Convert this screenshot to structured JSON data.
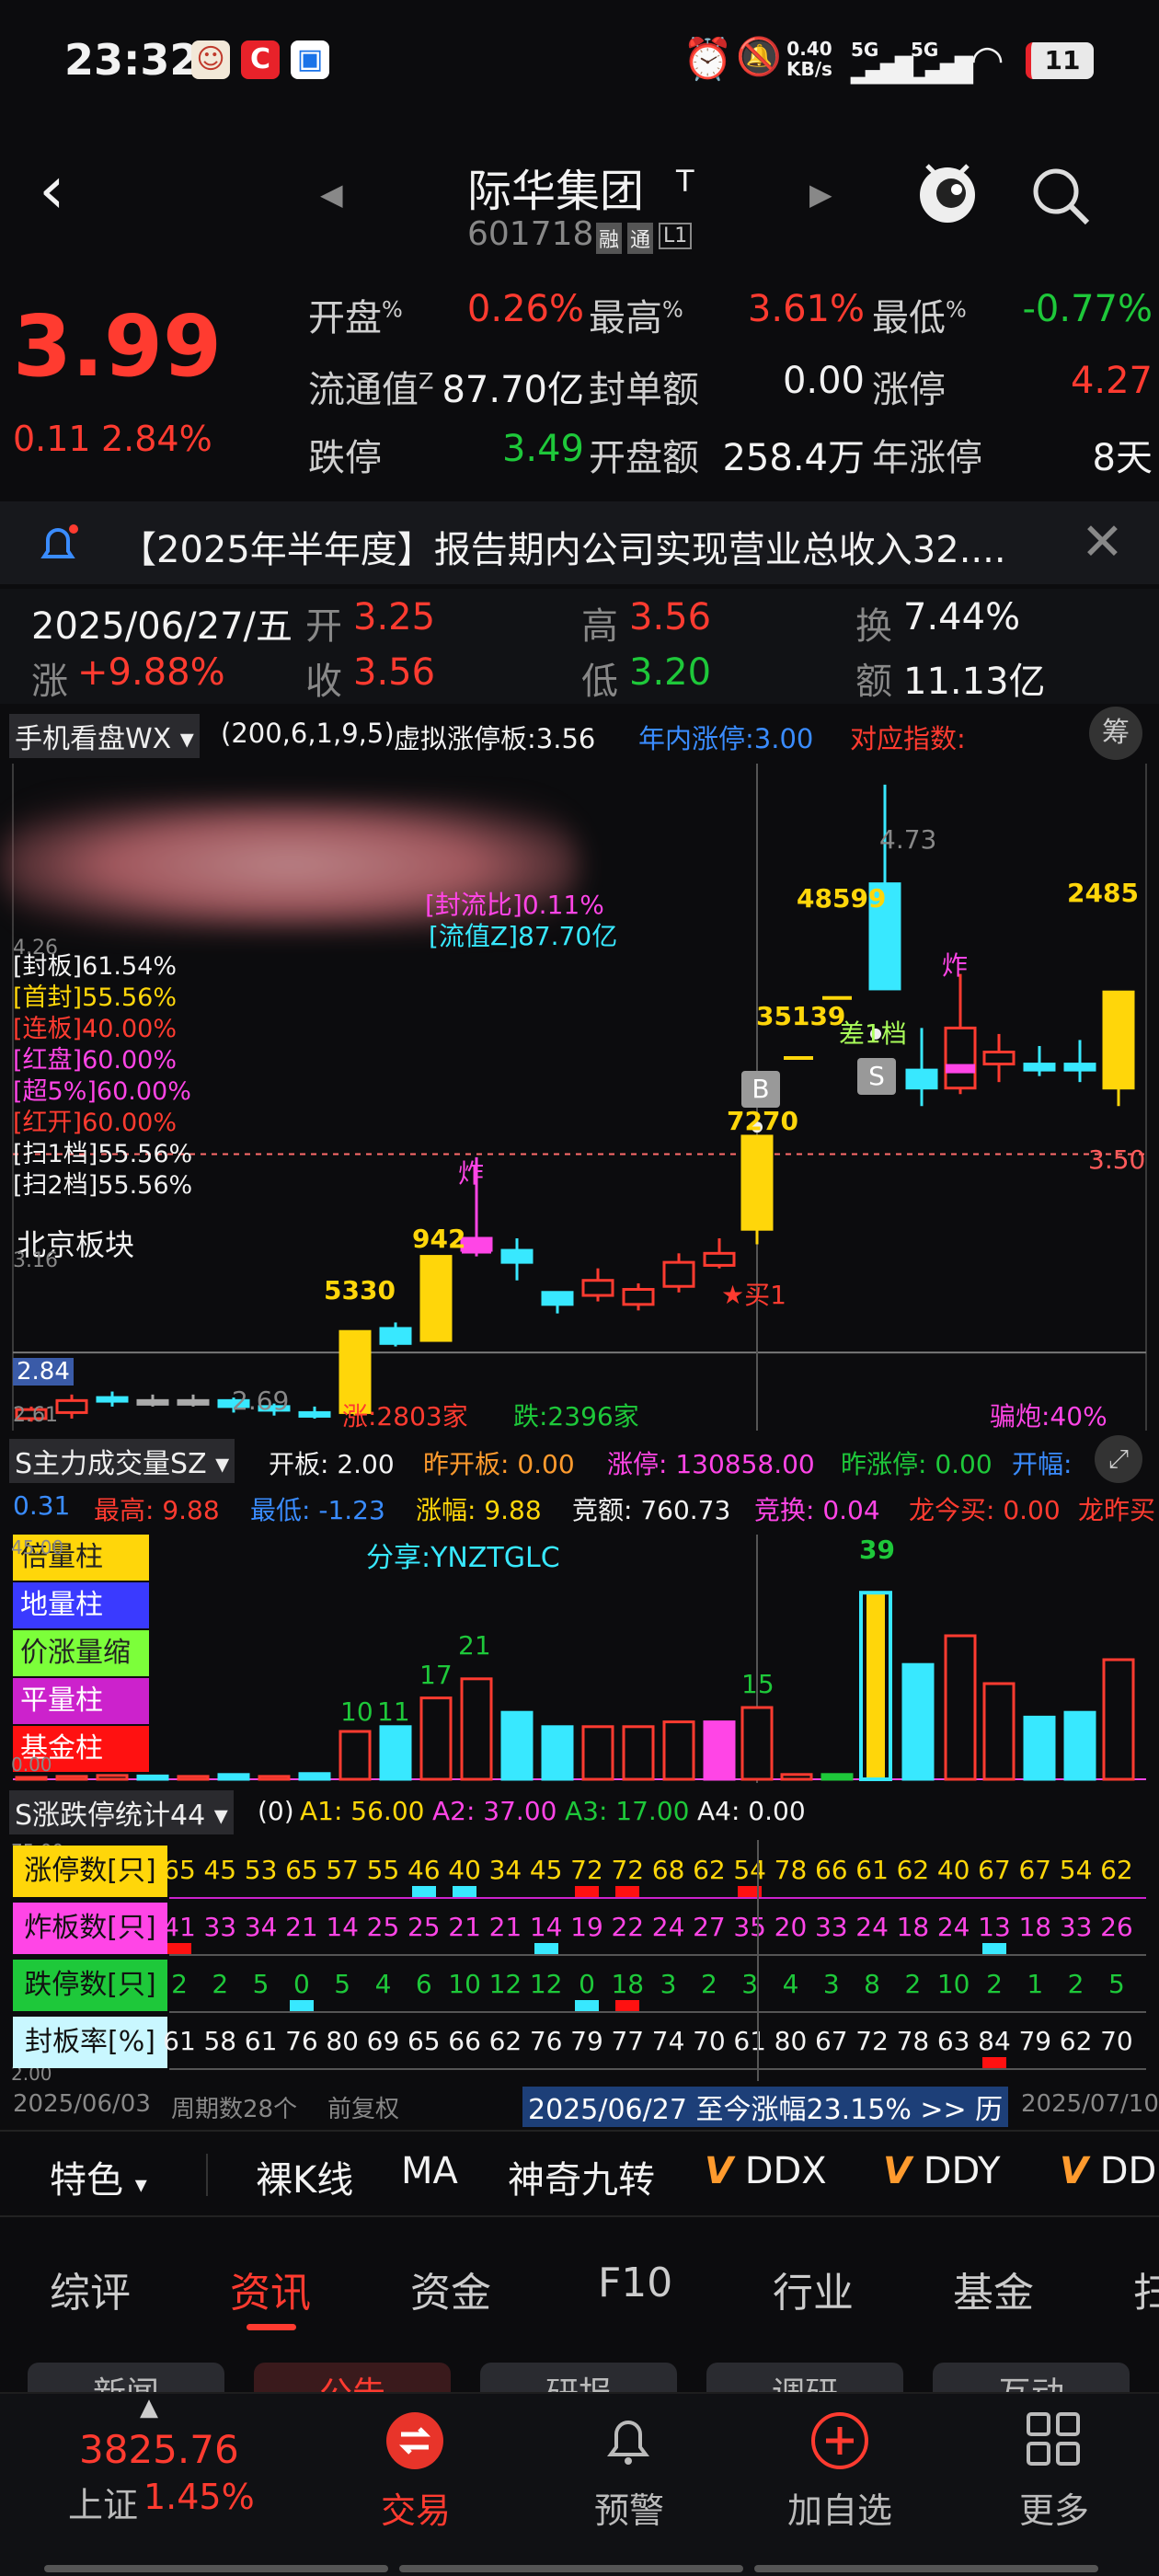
{
  "status_bar": {
    "time": "23:32",
    "speed": "0.40",
    "speed_unit": "KB/s",
    "net1": "5G",
    "net2": "5G",
    "battery": "11"
  },
  "header": {
    "name": "际华集团",
    "tag": "T",
    "code": "601718",
    "badges": [
      "融",
      "通",
      "L1"
    ]
  },
  "quote": {
    "price": "3.99",
    "change": "0.11",
    "change_pct": "2.84%",
    "fields": [
      {
        "label": "开盘",
        "sup": "%",
        "value": "0.26%",
        "color": "#ff3b30"
      },
      {
        "label": "最高",
        "sup": "%",
        "value": "3.61%",
        "color": "#ff3b30"
      },
      {
        "label": "最低",
        "sup": "%",
        "value": "-0.77%",
        "color": "#1ec83a"
      },
      {
        "label": "流通值",
        "sup": "Z",
        "value": "87.70亿",
        "color": "#f2f2f2"
      },
      {
        "label": "封单额",
        "sup": "",
        "value": "0.00",
        "color": "#f2f2f2"
      },
      {
        "label": "涨停",
        "sup": "",
        "value": "4.27",
        "color": "#ff3b30"
      },
      {
        "label": "跌停",
        "sup": "",
        "value": "3.49",
        "color": "#1ec83a"
      },
      {
        "label": "开盘额",
        "sup": "",
        "value": "258.4万",
        "color": "#f2f2f2"
      },
      {
        "label": "年涨停",
        "sup": "",
        "value": "8天",
        "color": "#f2f2f2"
      }
    ]
  },
  "notice": {
    "text": "【2025年半年度】报告期内公司实现营业总收入32...."
  },
  "day_info": {
    "date": "2025/06/27/五",
    "open_label": "开",
    "open": "3.25",
    "high_label": "高",
    "high": "3.56",
    "turnover_label": "换",
    "turnover": "7.44%",
    "chg_label": "涨",
    "chg": "+9.88%",
    "close_label": "收",
    "close": "3.56",
    "low_label": "低",
    "low": "3.20",
    "amount_label": "额",
    "amount": "11.13亿"
  },
  "kline_header": {
    "indicator": "手机看盘WX",
    "params": "(200,6,1,9,5)",
    "virtual": "虚拟涨停板:3.56",
    "year_zt": "年内涨停:3.00",
    "index": "对应指数:",
    "side_btn": "筹"
  },
  "kline": {
    "left_stats": [
      "[封板]61.54%",
      "[首封]55.56%",
      "[连板]40.00%",
      "[红盘]60.00%",
      "[超5%]60.00%",
      "[红开]60.00%",
      "[扫1档]55.56%",
      "[扫2档]55.56%"
    ],
    "left_stat_colors": [
      "#f2f2f2",
      "#ffd60a",
      "#ff3b30",
      "#ff45e6",
      "#ff45e6",
      "#ff3b30",
      "#f2f2f2",
      "#f2f2f2"
    ],
    "sector": "北京板块",
    "mid_labels": [
      "[封流比]0.11%",
      "[流值Z]87.70亿"
    ],
    "axis_labels": [
      "4.26",
      "3.16",
      "2.84",
      "2.61"
    ],
    "ref_price": "3.50",
    "annotations": {
      "a5330": "5330",
      "a942": "942",
      "a7270": "7270",
      "a35139": "35139",
      "a48599": "48599",
      "a2485": "2485",
      "high": "4.73",
      "low": "2.69",
      "zha1": "炸",
      "zha2": "炸",
      "buy": "★买1",
      "diff": "差1档",
      "b": "B",
      "s": "S"
    },
    "bottom": {
      "up": "涨:2803家",
      "down": "跌:2396家",
      "pian": "骗炮:40%"
    }
  },
  "vol_header": {
    "name": "S主力成交量SZ",
    "kaiban": "开板: 2.00",
    "zkb": "昨开板: 0.00",
    "zt": "涨停: 130858.00",
    "zzt": "昨涨停: 0.00",
    "kf": "开幅:",
    "kf_val": "0.31",
    "high": "最高: 9.88",
    "low": "最低: -1.23",
    "zf": "涨幅: 9.88",
    "jj": "竞额: 760.73",
    "jh": "竞换: 0.04",
    "lj": "龙今买: 0.00",
    "lz": "龙昨买"
  },
  "vol": {
    "legend": [
      "倍量柱",
      "地量柱",
      "价涨量缩",
      "平量柱",
      "基金柱"
    ],
    "share": "分享:YNZTGLC",
    "labels": {
      "l10": "10",
      "l11": "11",
      "l17": "17",
      "l21": "21",
      "l15": "15",
      "l39": "39"
    },
    "axis": "0.00",
    "axis_top": "45.00"
  },
  "zt_header": {
    "name": "S涨跌停统计44",
    "zero": "(0)",
    "a1": "A1: 56.00",
    "a2": "A2: 37.00",
    "a3": "A3: 17.00",
    "a4": "A4: 0.00"
  },
  "zt_table": {
    "rows": [
      {
        "label": "涨停数[只]",
        "values": [
          "65",
          "45",
          "53",
          "65",
          "57",
          "55",
          "46",
          "40",
          "34",
          "45",
          "72",
          "72",
          "68",
          "62",
          "54",
          "78",
          "66",
          "61",
          "62",
          "40",
          "67",
          "67",
          "54",
          "62"
        ],
        "color": "#ffd60a",
        "labelbg": "#ffd60a"
      },
      {
        "label": "炸板数[只]",
        "values": [
          "41",
          "33",
          "34",
          "21",
          "14",
          "25",
          "25",
          "21",
          "21",
          "14",
          "19",
          "22",
          "24",
          "27",
          "35",
          "20",
          "33",
          "24",
          "18",
          "24",
          "13",
          "18",
          "33",
          "26"
        ],
        "color": "#ff45e6",
        "labelbg": "#ff45e6"
      },
      {
        "label": "跌停数[只]",
        "values": [
          "2",
          "2",
          "5",
          "0",
          "5",
          "4",
          "6",
          "10",
          "12",
          "12",
          "0",
          "18",
          "3",
          "2",
          "3",
          "4",
          "3",
          "8",
          "2",
          "10",
          "2",
          "1",
          "2",
          "5"
        ],
        "color": "#1ec83a",
        "labelbg": "#1ec83a"
      },
      {
        "label": "封板率[%]",
        "values": [
          "61",
          "58",
          "61",
          "76",
          "80",
          "69",
          "65",
          "66",
          "62",
          "76",
          "79",
          "77",
          "74",
          "70",
          "61",
          "80",
          "67",
          "72",
          "78",
          "63",
          "84",
          "79",
          "62",
          "70"
        ],
        "color": "#f2f2f2",
        "labelbg": "#c9f7ff"
      }
    ],
    "axis_top": "75.00",
    "axis_bottom": "2.00"
  },
  "date_bar": {
    "start": "2025/06/03",
    "period": "周期数28个",
    "fq": "前复权",
    "range": "2025/06/27 至今涨幅23.15% >> 历",
    "end": "2025/07/10"
  },
  "indicator_tabs": [
    "特色",
    "裸K线",
    "MA",
    "神奇九转",
    "DDX",
    "DDY",
    "DD"
  ],
  "main_tabs": [
    "综评",
    "资讯",
    "资金",
    "F10",
    "行业",
    "基金",
    "扫"
  ],
  "sub_tabs": [
    "新闻",
    "公告",
    "研报",
    "调研",
    "互动"
  ],
  "bottom_nav": {
    "index_value": "3825.76",
    "index_name": "上证",
    "index_pct": "1.45%",
    "items": [
      "交易",
      "预警",
      "加自选",
      "更多"
    ]
  }
}
